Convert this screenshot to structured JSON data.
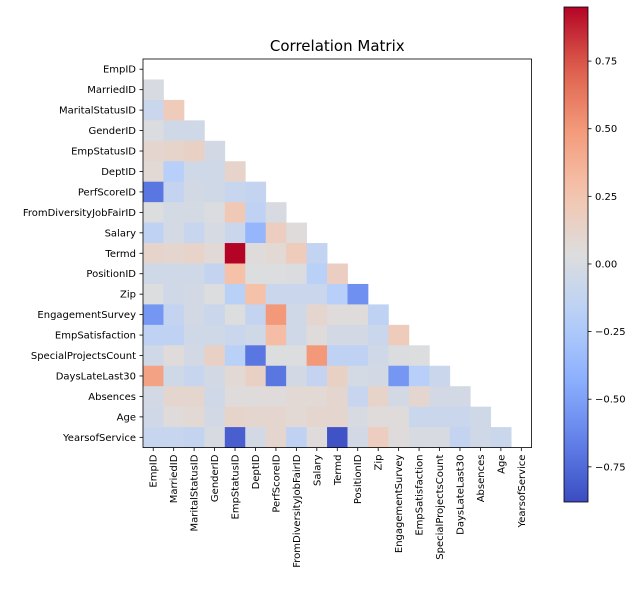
{
  "chart_data": {
    "type": "heatmap",
    "title": "Correlation Matrix",
    "variables": [
      "EmpID",
      "MarriedID",
      "MaritalStatusID",
      "GenderID",
      "EmpStatusID",
      "DeptID",
      "PerfScoreID",
      "FromDiversityJobFairID",
      "Salary",
      "Termd",
      "PositionID",
      "Zip",
      "EngagementSurvey",
      "EmpSatisfaction",
      "SpecialProjectsCount",
      "DaysLateLast30",
      "Absences",
      "Age",
      "YearsofService"
    ],
    "mask": "upper triangle and diagonal hidden",
    "colormap": "coolwarm",
    "vmin": -0.88,
    "vmax": 0.95,
    "colorbar_ticks": [
      -0.75,
      -0.5,
      -0.25,
      0.0,
      0.25,
      0.5,
      0.75
    ],
    "colorbar_tick_labels": [
      "−0.75",
      "−0.50",
      "−0.25",
      "0.00",
      "0.25",
      "0.50",
      "0.75"
    ],
    "matrix": [
      [],
      [
        0.0
      ],
      [
        -0.08,
        0.2
      ],
      [
        0.02,
        -0.05,
        -0.05
      ],
      [
        0.1,
        0.12,
        0.15,
        -0.03
      ],
      [
        0.08,
        -0.2,
        -0.05,
        -0.05,
        0.12
      ],
      [
        -0.7,
        -0.12,
        -0.03,
        -0.05,
        -0.1,
        -0.12
      ],
      [
        0.03,
        -0.02,
        -0.02,
        0.02,
        0.22,
        -0.15,
        0.0
      ],
      [
        -0.15,
        -0.02,
        -0.1,
        -0.01,
        -0.08,
        -0.38,
        0.18,
        0.05
      ],
      [
        0.12,
        0.1,
        0.13,
        0.07,
        0.95,
        0.05,
        0.08,
        0.2,
        -0.13
      ],
      [
        -0.05,
        -0.05,
        -0.05,
        -0.12,
        0.28,
        0.03,
        0.03,
        0.02,
        -0.18,
        0.17
      ],
      [
        0.03,
        -0.05,
        -0.03,
        0.03,
        -0.18,
        0.28,
        -0.08,
        -0.08,
        -0.08,
        -0.2,
        -0.58
      ],
      [
        -0.55,
        -0.12,
        -0.03,
        -0.08,
        0.03,
        -0.12,
        0.5,
        -0.05,
        0.1,
        0.05,
        0.05,
        -0.15
      ],
      [
        -0.15,
        -0.15,
        -0.05,
        -0.05,
        -0.08,
        -0.05,
        0.3,
        -0.05,
        0.05,
        -0.03,
        -0.03,
        -0.08,
        0.2
      ],
      [
        -0.05,
        0.05,
        -0.03,
        0.15,
        -0.18,
        -0.7,
        0.03,
        0.03,
        0.5,
        -0.15,
        -0.15,
        -0.05,
        0.02,
        0.03
      ],
      [
        0.45,
        -0.05,
        -0.1,
        -0.03,
        0.08,
        0.15,
        -0.7,
        -0.03,
        -0.12,
        0.15,
        -0.02,
        -0.03,
        -0.55,
        -0.2,
        -0.08
      ],
      [
        -0.03,
        0.1,
        0.1,
        -0.05,
        0.05,
        0.05,
        0.05,
        0.08,
        0.08,
        0.1,
        -0.1,
        0.12,
        -0.03,
        0.1,
        -0.03,
        -0.03
      ],
      [
        -0.05,
        0.05,
        0.08,
        -0.03,
        0.12,
        0.1,
        0.1,
        0.08,
        0.1,
        0.1,
        0.0,
        0.05,
        0.05,
        -0.08,
        -0.08,
        -0.08,
        -0.05
      ],
      [
        -0.1,
        -0.1,
        -0.12,
        0.0,
        -0.8,
        -0.03,
        0.1,
        -0.15,
        0.05,
        -0.85,
        -0.03,
        0.18,
        0.05,
        0.0,
        0.0,
        -0.12,
        -0.05,
        -0.08
      ]
    ]
  }
}
